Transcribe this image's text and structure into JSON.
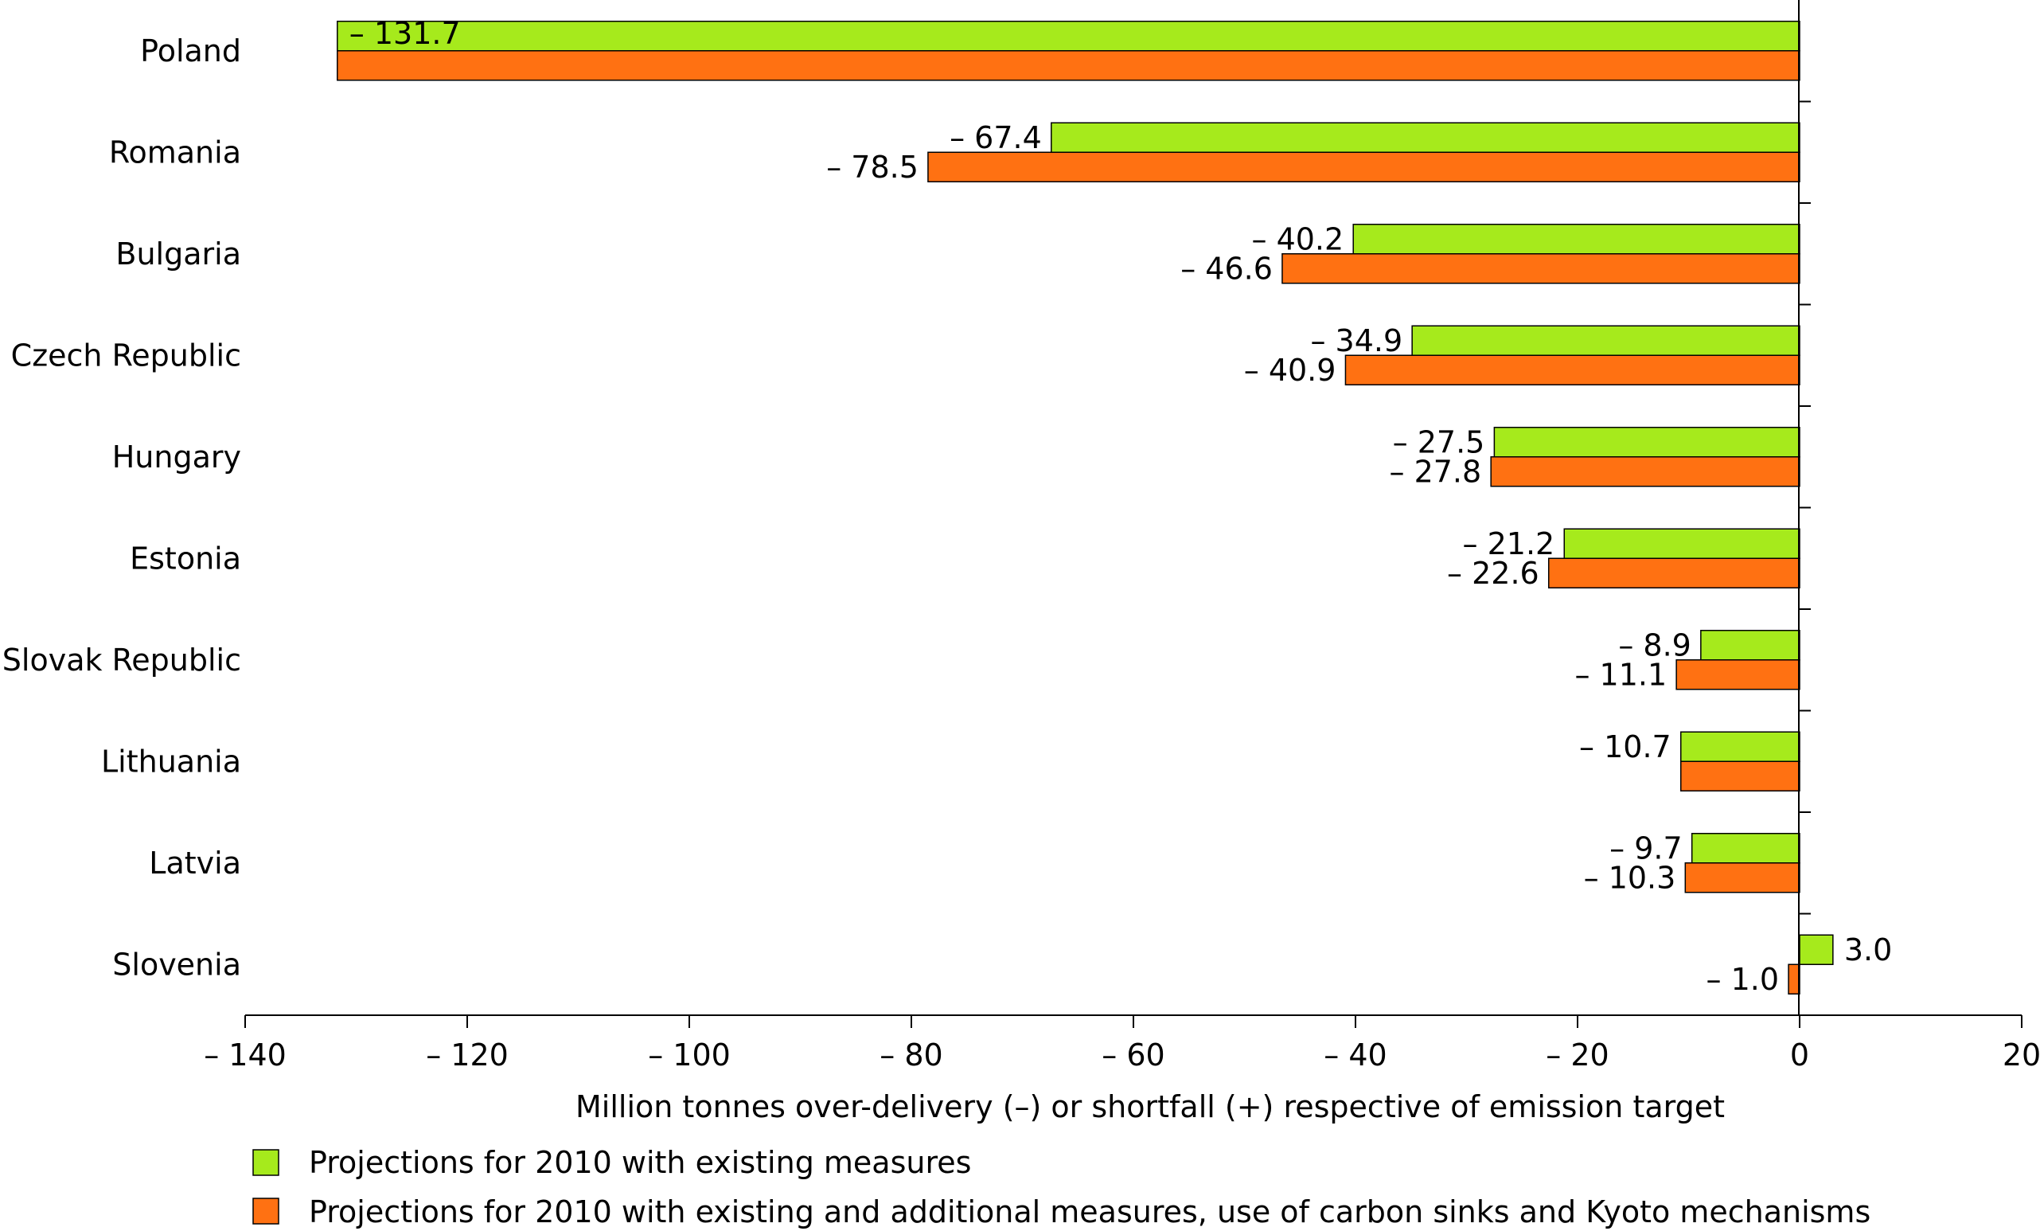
{
  "chart_data": {
    "type": "bar",
    "orientation": "horizontal",
    "categories": [
      "Poland",
      "Romania",
      "Bulgaria",
      "Czech Republic",
      "Hungary",
      "Estonia",
      "Slovak Republic",
      "Lithuania",
      "Latvia",
      "Slovenia"
    ],
    "series": [
      {
        "name": "Projections for 2010 with existing measures",
        "color": "#a6ea1c",
        "values": [
          -131.7,
          -67.4,
          -40.2,
          -34.9,
          -27.5,
          -21.2,
          -8.9,
          -10.7,
          -9.7,
          3.0
        ],
        "labels": [
          "– 131.7",
          "– 67.4",
          "– 40.2",
          "– 34.9",
          "– 27.5",
          "– 21.2",
          "– 8.9",
          "– 10.7",
          "– 9.7",
          "3.0"
        ]
      },
      {
        "name": "Projections for 2010 with existing and additional measures, use of carbon sinks and Kyoto mechanisms",
        "color": "#ff7112",
        "values": [
          -131.7,
          -78.5,
          -46.6,
          -40.9,
          -27.8,
          -22.6,
          -11.1,
          -10.7,
          -10.3,
          -1.0
        ],
        "labels": [
          "",
          "– 78.5",
          "– 46.6",
          "– 40.9",
          "– 27.8",
          "– 22.6",
          "– 11.1",
          "",
          "– 10.3",
          "– 1.0"
        ]
      }
    ],
    "xlabel": "Million tonnes over-delivery (–) or shortfall (+) respective of emission target",
    "ylabel": "",
    "xlim": [
      -140,
      20
    ],
    "xticks": [
      -140,
      -120,
      -100,
      -80,
      -60,
      -40,
      -20,
      0,
      20
    ],
    "xtick_labels": [
      "– 140",
      "– 120",
      "– 100",
      "– 80",
      "– 60",
      "– 40",
      "– 20",
      "0",
      "20"
    ],
    "grid": false,
    "legend_position": "bottom-left"
  }
}
